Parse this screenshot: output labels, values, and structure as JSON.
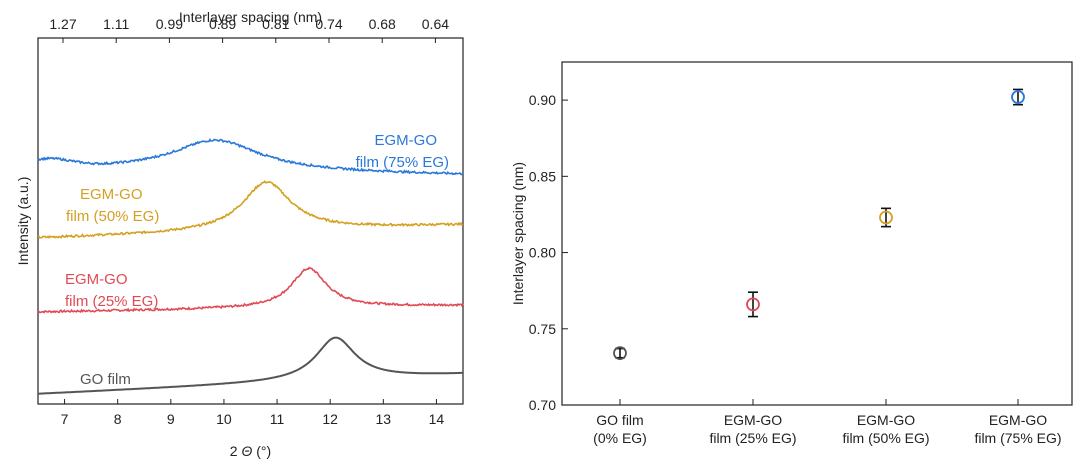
{
  "chart_data": [
    {
      "type": "line",
      "xlabel": "2 Θ (°)",
      "xlabel_prefix": "2 ",
      "xlabel_theta": "Θ",
      "xlabel_suffix": " (°)",
      "ylabel": "Intensity (a.u.)",
      "top_xlabel": "Interlayer spacing (nm)",
      "xlim": [
        6.5,
        14.5
      ],
      "x_ticks": [
        "7",
        "8",
        "9",
        "10",
        "11",
        "12",
        "13",
        "14"
      ],
      "top_ticks": [
        "1.27",
        "1.11",
        "0.99",
        "0.89",
        "0.81",
        "0.74",
        "0.68",
        "0.64"
      ],
      "series": [
        {
          "name": "GO film",
          "label_lines": [
            "GO film"
          ],
          "color": "#555555",
          "peak_x": 12.1,
          "offset": 0,
          "amplitude": 0.52,
          "width": 0.45,
          "base_slope": 0.03
        },
        {
          "name": "EGM-GO film (25% EG)",
          "label_lines": [
            "EGM-GO",
            "film (25% EG)"
          ],
          "color": "#e04a55",
          "peak_x": 11.6,
          "offset": 1.0,
          "amplitude": 0.48,
          "width": 0.4,
          "base_slope": 0.01
        },
        {
          "name": "EGM-GO film (50% EG)",
          "label_lines": [
            "EGM-GO",
            "film (50% EG)"
          ],
          "color": "#d4a020",
          "peak_x": 10.8,
          "offset": 1.9,
          "amplitude": 0.6,
          "width": 0.55,
          "base_slope": 0.02
        },
        {
          "name": "EGM-GO film (75% EG)",
          "label_lines": [
            "EGM-GO",
            "film (75% EG)"
          ],
          "color": "#2a78d8",
          "peak_x": 9.85,
          "offset": 2.75,
          "amplitude": 0.38,
          "width": 1.0,
          "base_slope": -0.01
        }
      ]
    },
    {
      "type": "scatter",
      "ylabel": "Interlayer spacing (nm)",
      "ylim": [
        0.7,
        0.925
      ],
      "y_ticks": [
        "0.70",
        "0.75",
        "0.80",
        "0.85",
        "0.90"
      ],
      "categories": [
        [
          "GO film",
          "(0% EG)"
        ],
        [
          "EGM-GO",
          "film (25% EG)"
        ],
        [
          "EGM-GO",
          "film (50% EG)"
        ],
        [
          "EGM-GO",
          "film (75% EG)"
        ]
      ],
      "values": [
        0.734,
        0.766,
        0.823,
        0.902
      ],
      "errors": [
        0.003,
        0.008,
        0.006,
        0.005
      ],
      "colors": [
        "#555555",
        "#e04a55",
        "#d4a020",
        "#2a78d8"
      ]
    }
  ]
}
